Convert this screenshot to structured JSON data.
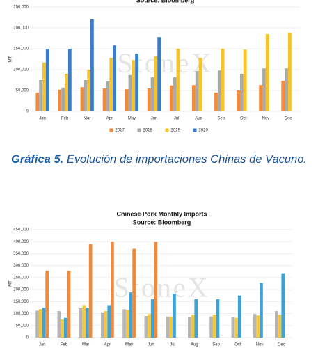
{
  "chart_data": [
    {
      "type": "bar",
      "subtitle": "Source: Bloomberg",
      "y_label": "MT",
      "watermark": "StoneX",
      "categories": [
        "Jan",
        "Feb",
        "Mar",
        "Apr",
        "May",
        "Jun",
        "Jul",
        "Aug",
        "Sep",
        "Oct",
        "Nov",
        "Dec"
      ],
      "series": [
        {
          "name": "2017",
          "color": "#f28a3c",
          "values": [
            45000,
            52000,
            58000,
            55000,
            53000,
            55000,
            62000,
            63000,
            45000,
            50000,
            63000,
            73000
          ]
        },
        {
          "name": "2018",
          "color": "#a9a9a9",
          "values": [
            75000,
            57000,
            75000,
            72000,
            87000,
            82000,
            82000,
            97000,
            98000,
            90000,
            103000,
            103000
          ]
        },
        {
          "name": "2019",
          "color": "#f7c325",
          "values": [
            117000,
            90000,
            100000,
            128000,
            123000,
            132000,
            150000,
            128000,
            150000,
            148000,
            185000,
            188000
          ]
        },
        {
          "name": "2020",
          "color": "#3d7cc9",
          "values": [
            150000,
            150000,
            220000,
            158000,
            138000,
            178000,
            null,
            null,
            null,
            null,
            null,
            null
          ]
        }
      ],
      "ylim": [
        0,
        250000
      ],
      "yticks": [
        0,
        {
          "value": 50000,
          "label": "50,000"
        },
        {
          "value": 100000,
          "label": "100,000"
        },
        {
          "value": 150000,
          "label": "150,000"
        },
        {
          "value": 200000,
          "label": "200,000"
        },
        {
          "value": 250000,
          "label": "250,000"
        }
      ],
      "legend": "bottom"
    },
    {
      "type": "bar",
      "title": "Chinese Pork Monthly Imports",
      "subtitle": "Source: Bloomberg",
      "y_label": "MT",
      "watermark": "StoneX",
      "categories": [
        "Jan",
        "Feb",
        "Mar",
        "Apr",
        "May",
        "Jun",
        "Jul",
        "Aug",
        "Sep",
        "Oct",
        "Nov",
        "Dec"
      ],
      "series": [
        {
          "color": "#b5b5b5",
          "values": [
            112000,
            110000,
            122000,
            105000,
            118000,
            90000,
            88000,
            85000,
            88000,
            85000,
            98000,
            110000
          ]
        },
        {
          "color": "#f5c842",
          "values": [
            118000,
            75000,
            135000,
            110000,
            115000,
            98000,
            88000,
            95000,
            95000,
            82000,
            92000,
            95000
          ]
        },
        {
          "color": "#3ea3d6",
          "values": [
            125000,
            82000,
            125000,
            135000,
            188000,
            160000,
            183000,
            160000,
            160000,
            175000,
            228000,
            268000
          ]
        },
        {
          "color": "#f28a3c",
          "values": [
            278000,
            278000,
            390000,
            400000,
            370000,
            400000,
            null,
            null,
            null,
            null,
            null,
            null
          ]
        }
      ],
      "ylim": [
        0,
        450000
      ],
      "yticks": [
        0,
        {
          "value": 50000,
          "label": "50,000"
        },
        {
          "value": 100000,
          "label": "100,000"
        },
        {
          "value": 150000,
          "label": "150,000"
        },
        {
          "value": 200000,
          "label": "200,000"
        },
        {
          "value": 250000,
          "label": "250,000"
        },
        {
          "value": 300000,
          "label": "300,000"
        },
        {
          "value": 350000,
          "label": "350,000"
        },
        {
          "value": 400000,
          "label": "400,000"
        },
        {
          "value": 450000,
          "label": "450,000"
        }
      ]
    }
  ],
  "caption": {
    "label": "Gráfica 5.",
    "text": "Evolución de importaciones Chinas de Vacuno."
  }
}
